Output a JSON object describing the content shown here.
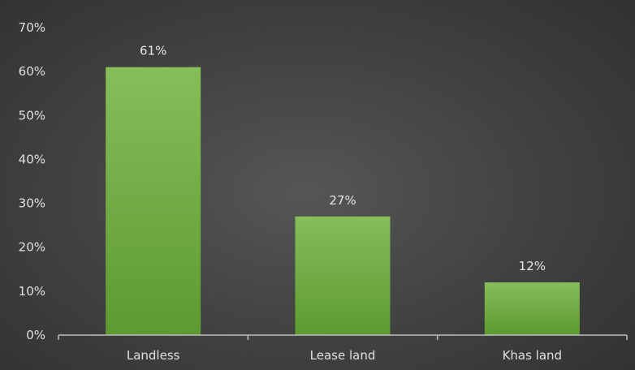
{
  "chart_data": {
    "type": "bar",
    "title": "",
    "xlabel": "",
    "ylabel": "",
    "categories": [
      "Landless",
      "Lease land",
      "Khas land"
    ],
    "values": [
      61,
      27,
      12
    ],
    "data_labels": [
      "61%",
      "27%",
      "12%"
    ],
    "ylim": [
      0,
      70
    ],
    "yticks": [
      0,
      10,
      20,
      30,
      40,
      50,
      60,
      70
    ],
    "ytick_labels": [
      "0%",
      "10%",
      "20%",
      "30%",
      "40%",
      "50%",
      "60%",
      "70%"
    ],
    "grid": false,
    "legend": "none",
    "colors": {
      "bar_top": "#86be5a",
      "bar_bottom": "#5d9a31",
      "axis": "#bfbfbf",
      "text": "#e0e0e0"
    }
  }
}
